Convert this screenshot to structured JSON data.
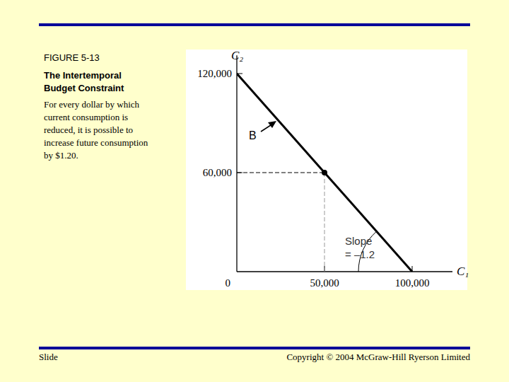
{
  "chart_data": {
    "type": "line",
    "x_label": "C₁",
    "y_label": "C₂",
    "xlim": [
      0,
      123000
    ],
    "ylim": [
      0,
      131000
    ],
    "xticks": [
      0,
      {
        "value": 50000,
        "label": "50,000"
      },
      {
        "value": 100000,
        "label": "100,000"
      }
    ],
    "yticks": [
      {
        "value": 60000,
        "label": "60,000"
      },
      {
        "value": 120000,
        "label": "120,000"
      }
    ],
    "grid": false,
    "series": [
      {
        "type": "line",
        "color": "#000000",
        "x": [
          0,
          100000
        ],
        "values": [
          120000,
          0
        ]
      },
      {
        "type": "scatter",
        "color": "#000000",
        "marker": "circle",
        "x": [
          50000
        ],
        "values": [
          60000
        ]
      }
    ],
    "annotations": [
      "B",
      "Slope",
      "= –1.2"
    ]
  },
  "slide": {
    "figure": "FIGURE 5-13",
    "title": [
      "The Intertemporal",
      "Budget Constraint"
    ],
    "caption": [
      "For every dollar by which",
      "current consumption is",
      "reduced, it is possible to",
      "increase future consumption",
      "by $1.20."
    ],
    "footer_left": "Slide",
    "footer_right": "Copyright © 2004 McGraw-Hill Ryerson Limited"
  }
}
